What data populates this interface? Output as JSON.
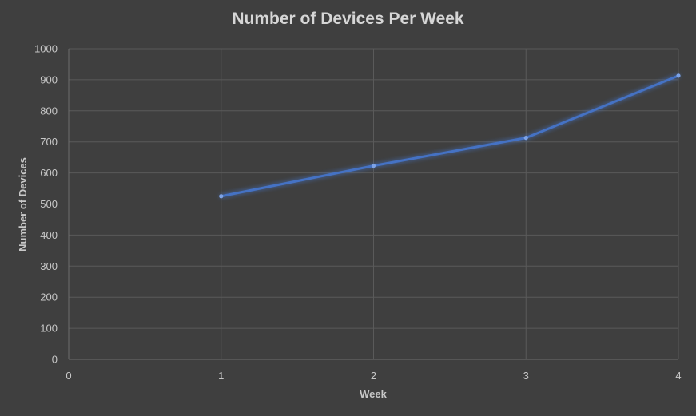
{
  "chart_data": {
    "type": "scatter",
    "title": "Number of Devices Per Week",
    "xlabel": "Week",
    "ylabel": "Number of Devices",
    "xlim": [
      0,
      4
    ],
    "ylim": [
      0,
      1000
    ],
    "x_ticks": [
      "0",
      "1",
      "2",
      "3",
      "4"
    ],
    "y_ticks": [
      "0",
      "100",
      "200",
      "300",
      "400",
      "500",
      "600",
      "700",
      "800",
      "900",
      "1000"
    ],
    "grid": true,
    "legend": "none",
    "series": [
      {
        "x": [
          1,
          2,
          3,
          4
        ],
        "y": [
          525,
          623,
          713,
          913
        ]
      }
    ],
    "colors": {
      "background": "#3f3f3f",
      "grid": "#5a5a5a",
      "axis": "#6e6e6e",
      "line": "#4472c4",
      "marker": "#7da3e8",
      "text": "#c8c8c8",
      "title": "#d6d6d6"
    }
  }
}
